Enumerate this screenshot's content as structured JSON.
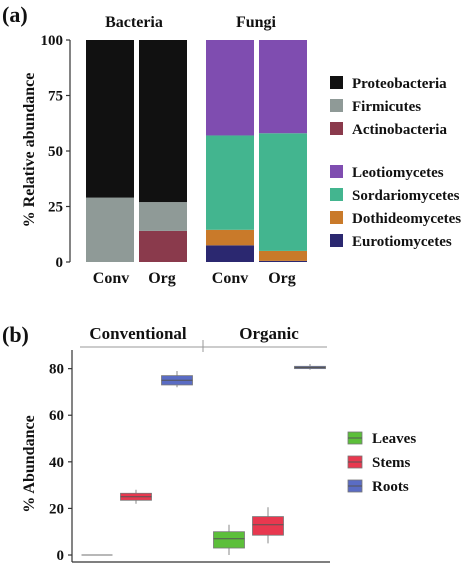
{
  "chart_data": [
    {
      "panel_label": "(a)",
      "type": "bar",
      "stacked": true,
      "ylabel": "% Relative abundance",
      "ylim": [
        0,
        100
      ],
      "yticks": [
        0,
        25,
        50,
        75,
        100
      ],
      "groups": [
        {
          "title": "Bacteria",
          "categories": [
            "Conv",
            "Org"
          ],
          "series": [
            {
              "name": "Actinobacteria",
              "color": "#8a3a4c",
              "values": [
                0,
                14
              ]
            },
            {
              "name": "Firmicutes",
              "color": "#8f9a97",
              "values": [
                29,
                13
              ]
            },
            {
              "name": "Proteobacteria",
              "color": "#111111",
              "values": [
                71,
                73
              ]
            }
          ]
        },
        {
          "title": "Fungi",
          "categories": [
            "Conv",
            "Org"
          ],
          "series": [
            {
              "name": "Eurotiomycetes",
              "color": "#2b2870",
              "values": [
                7.5,
                0.5
              ]
            },
            {
              "name": "Dothideomycetes",
              "color": "#c97a2a",
              "values": [
                7,
                4.5
              ]
            },
            {
              "name": "Sordariomycetes",
              "color": "#43b58f",
              "values": [
                42.5,
                53
              ]
            },
            {
              "name": "Leotiomycetes",
              "color": "#7f4db0",
              "values": [
                43,
                42
              ]
            }
          ]
        }
      ],
      "legend": {
        "placement": "right",
        "groups": [
          [
            {
              "name": "Proteobacteria",
              "color": "#111111"
            },
            {
              "name": "Firmicutes",
              "color": "#8f9a97"
            },
            {
              "name": "Actinobacteria",
              "color": "#8a3a4c"
            }
          ],
          [
            {
              "name": "Leotiomycetes",
              "color": "#7f4db0"
            },
            {
              "name": "Sordariomycetes",
              "color": "#43b58f"
            },
            {
              "name": "Dothideomycetes",
              "color": "#c97a2a"
            },
            {
              "name": "Eurotiomycetes",
              "color": "#2b2870"
            }
          ]
        ]
      }
    },
    {
      "panel_label": "(b)",
      "type": "box",
      "ylabel": "% Abundance",
      "ylim": [
        -3,
        88
      ],
      "yticks": [
        0,
        20,
        40,
        60,
        80
      ],
      "group_titles": [
        "Conventional",
        "Organic"
      ],
      "series": [
        {
          "name": "Leaves",
          "color": "#5cbf3a",
          "boxes": [
            {
              "group": "Conventional",
              "min": 0,
              "q1": 0,
              "median": 0,
              "q3": 0,
              "max": 0
            },
            {
              "group": "Organic",
              "min": 0,
              "q1": 3,
              "median": 7,
              "q3": 10,
              "max": 13
            }
          ]
        },
        {
          "name": "Stems",
          "color": "#e8384f",
          "boxes": [
            {
              "group": "Conventional",
              "min": 22,
              "q1": 23.5,
              "median": 25,
              "q3": 26.5,
              "max": 28
            },
            {
              "group": "Organic",
              "min": 5,
              "q1": 8.5,
              "median": 13,
              "q3": 16.5,
              "max": 20.5
            }
          ]
        },
        {
          "name": "Roots",
          "color": "#5a6cc4",
          "boxes": [
            {
              "group": "Conventional",
              "min": 72,
              "q1": 73,
              "median": 75,
              "q3": 77,
              "max": 79
            },
            {
              "group": "Organic",
              "min": 79.5,
              "q1": 80,
              "median": 80.5,
              "q3": 81,
              "max": 82
            }
          ]
        }
      ],
      "legend": {
        "placement": "right"
      }
    }
  ]
}
